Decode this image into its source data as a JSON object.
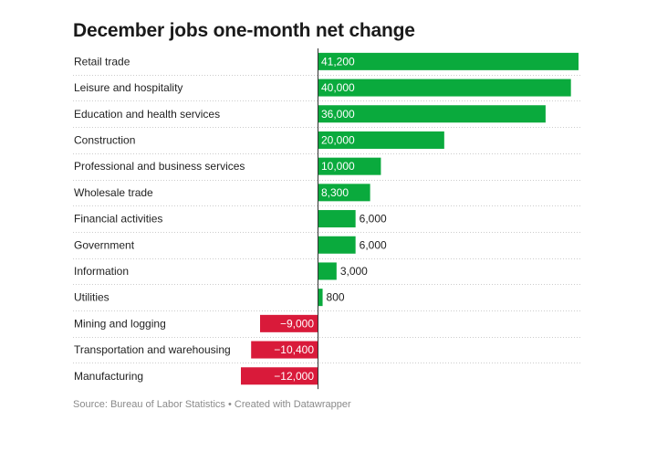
{
  "chart_data": {
    "type": "bar",
    "orientation": "horizontal",
    "title": "December jobs one-month net change",
    "categories": [
      "Retail trade",
      "Leisure and hospitality",
      "Education and health services",
      "Construction",
      "Professional and business services",
      "Wholesale trade",
      "Financial activities",
      "Government",
      "Information",
      "Utilities",
      "Mining and logging",
      "Transportation and warehousing",
      "Manufacturing"
    ],
    "values": [
      41200,
      40000,
      36000,
      20000,
      10000,
      8300,
      6000,
      6000,
      3000,
      800,
      -9000,
      -10400,
      -12000
    ],
    "value_labels": [
      "41,200",
      "40,000",
      "36,000",
      "20,000",
      "10,000",
      "8,300",
      "6,000",
      "6,000",
      "3,000",
      "800",
      "−9,000",
      "−10,400",
      "−12,000"
    ],
    "xlim": [
      -12000,
      41200
    ],
    "colors": {
      "positive": "#0aaa3d",
      "negative": "#d91a3a",
      "zero_line": "#333333",
      "row_divider": "#cccccc"
    },
    "grid": false,
    "legend": "none"
  },
  "source": "Source: Bureau of Labor Statistics • Created with Datawrapper"
}
